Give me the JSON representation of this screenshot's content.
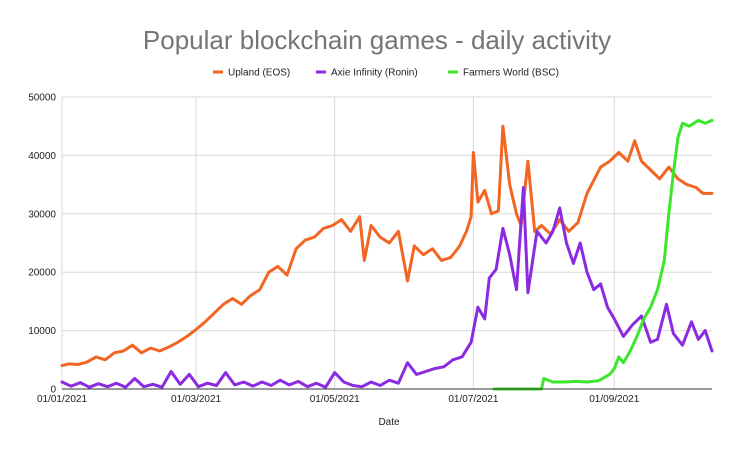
{
  "chart_data": {
    "type": "line",
    "title": "Popular blockchain games - daily activity",
    "xlabel": "Date",
    "ylabel": "",
    "ylim": [
      0,
      50000
    ],
    "yticks": [
      0,
      10000,
      20000,
      30000,
      40000,
      50000
    ],
    "xlim": [
      "2021-01-01",
      "2021-10-14"
    ],
    "xticks": [
      {
        "date": "2021-01-01",
        "label": "01/01/2021"
      },
      {
        "date": "2021-03-01",
        "label": "01/03/2021"
      },
      {
        "date": "2021-05-01",
        "label": "01/05/2021"
      },
      {
        "date": "2021-07-01",
        "label": "01/07/2021"
      },
      {
        "date": "2021-09-01",
        "label": "01/09/2021"
      }
    ],
    "grid": true,
    "legend_position": "top",
    "series": [
      {
        "name": "Upland (EOS)",
        "color": "#f26522",
        "points": [
          [
            "2021-01-01",
            4000
          ],
          [
            "2021-01-04",
            4300
          ],
          [
            "2021-01-08",
            4200
          ],
          [
            "2021-01-12",
            4600
          ],
          [
            "2021-01-16",
            5500
          ],
          [
            "2021-01-20",
            5000
          ],
          [
            "2021-01-24",
            6200
          ],
          [
            "2021-01-28",
            6500
          ],
          [
            "2021-02-01",
            7500
          ],
          [
            "2021-02-05",
            6200
          ],
          [
            "2021-02-09",
            7000
          ],
          [
            "2021-02-13",
            6500
          ],
          [
            "2021-02-17",
            7200
          ],
          [
            "2021-02-21",
            8000
          ],
          [
            "2021-02-25",
            9000
          ],
          [
            "2021-03-01",
            10200
          ],
          [
            "2021-03-05",
            11500
          ],
          [
            "2021-03-09",
            13000
          ],
          [
            "2021-03-13",
            14500
          ],
          [
            "2021-03-17",
            15500
          ],
          [
            "2021-03-21",
            14500
          ],
          [
            "2021-03-25",
            16000
          ],
          [
            "2021-03-29",
            17000
          ],
          [
            "2021-04-02",
            20000
          ],
          [
            "2021-04-06",
            21000
          ],
          [
            "2021-04-10",
            19500
          ],
          [
            "2021-04-14",
            24000
          ],
          [
            "2021-04-18",
            25500
          ],
          [
            "2021-04-22",
            26000
          ],
          [
            "2021-04-26",
            27500
          ],
          [
            "2021-04-30",
            28000
          ],
          [
            "2021-05-04",
            29000
          ],
          [
            "2021-05-08",
            27000
          ],
          [
            "2021-05-12",
            29500
          ],
          [
            "2021-05-14",
            22000
          ],
          [
            "2021-05-17",
            28000
          ],
          [
            "2021-05-21",
            26000
          ],
          [
            "2021-05-25",
            25000
          ],
          [
            "2021-05-29",
            27000
          ],
          [
            "2021-06-02",
            18500
          ],
          [
            "2021-06-05",
            24500
          ],
          [
            "2021-06-09",
            23000
          ],
          [
            "2021-06-13",
            24000
          ],
          [
            "2021-06-17",
            22000
          ],
          [
            "2021-06-21",
            22500
          ],
          [
            "2021-06-25",
            24500
          ],
          [
            "2021-06-28",
            27000
          ],
          [
            "2021-06-30",
            29500
          ],
          [
            "2021-07-01",
            40500
          ],
          [
            "2021-07-03",
            32000
          ],
          [
            "2021-07-06",
            34000
          ],
          [
            "2021-07-09",
            30000
          ],
          [
            "2021-07-12",
            30500
          ],
          [
            "2021-07-14",
            45000
          ],
          [
            "2021-07-17",
            35000
          ],
          [
            "2021-07-20",
            30000
          ],
          [
            "2021-07-22",
            28000
          ],
          [
            "2021-07-25",
            39000
          ],
          [
            "2021-07-28",
            27000
          ],
          [
            "2021-07-31",
            28000
          ],
          [
            "2021-08-04",
            26500
          ],
          [
            "2021-08-08",
            29000
          ],
          [
            "2021-08-12",
            27000
          ],
          [
            "2021-08-16",
            28500
          ],
          [
            "2021-08-20",
            33500
          ],
          [
            "2021-08-24",
            36500
          ],
          [
            "2021-08-26",
            38000
          ],
          [
            "2021-08-30",
            39000
          ],
          [
            "2021-09-03",
            40500
          ],
          [
            "2021-09-07",
            39000
          ],
          [
            "2021-09-10",
            42500
          ],
          [
            "2021-09-13",
            39000
          ],
          [
            "2021-09-17",
            37500
          ],
          [
            "2021-09-21",
            36000
          ],
          [
            "2021-09-25",
            38000
          ],
          [
            "2021-09-29",
            36000
          ],
          [
            "2021-10-03",
            35000
          ],
          [
            "2021-10-07",
            34500
          ],
          [
            "2021-10-10",
            33500
          ],
          [
            "2021-10-14",
            33500
          ]
        ]
      },
      {
        "name": "Axie Infinity (Ronin)",
        "color": "#8a2be2",
        "points": [
          [
            "2021-01-01",
            1200
          ],
          [
            "2021-01-05",
            500
          ],
          [
            "2021-01-09",
            1100
          ],
          [
            "2021-01-13",
            300
          ],
          [
            "2021-01-17",
            900
          ],
          [
            "2021-01-21",
            400
          ],
          [
            "2021-01-25",
            1000
          ],
          [
            "2021-01-29",
            300
          ],
          [
            "2021-02-02",
            1800
          ],
          [
            "2021-02-06",
            400
          ],
          [
            "2021-02-10",
            800
          ],
          [
            "2021-02-14",
            300
          ],
          [
            "2021-02-18",
            3000
          ],
          [
            "2021-02-22",
            800
          ],
          [
            "2021-02-26",
            2500
          ],
          [
            "2021-03-02",
            400
          ],
          [
            "2021-03-06",
            1000
          ],
          [
            "2021-03-10",
            600
          ],
          [
            "2021-03-14",
            2800
          ],
          [
            "2021-03-18",
            700
          ],
          [
            "2021-03-22",
            1200
          ],
          [
            "2021-03-26",
            500
          ],
          [
            "2021-03-30",
            1200
          ],
          [
            "2021-04-03",
            600
          ],
          [
            "2021-04-07",
            1500
          ],
          [
            "2021-04-11",
            700
          ],
          [
            "2021-04-15",
            1300
          ],
          [
            "2021-04-19",
            400
          ],
          [
            "2021-04-23",
            1000
          ],
          [
            "2021-04-27",
            300
          ],
          [
            "2021-05-01",
            2800
          ],
          [
            "2021-05-05",
            1200
          ],
          [
            "2021-05-09",
            600
          ],
          [
            "2021-05-13",
            400
          ],
          [
            "2021-05-17",
            1200
          ],
          [
            "2021-05-21",
            600
          ],
          [
            "2021-05-25",
            1500
          ],
          [
            "2021-05-29",
            1000
          ],
          [
            "2021-06-02",
            4500
          ],
          [
            "2021-06-06",
            2500
          ],
          [
            "2021-06-10",
            3000
          ],
          [
            "2021-06-14",
            3500
          ],
          [
            "2021-06-18",
            3800
          ],
          [
            "2021-06-22",
            5000
          ],
          [
            "2021-06-26",
            5500
          ],
          [
            "2021-06-30",
            8000
          ],
          [
            "2021-07-03",
            14000
          ],
          [
            "2021-07-06",
            12000
          ],
          [
            "2021-07-08",
            19000
          ],
          [
            "2021-07-11",
            20500
          ],
          [
            "2021-07-14",
            27500
          ],
          [
            "2021-07-17",
            23000
          ],
          [
            "2021-07-20",
            17000
          ],
          [
            "2021-07-23",
            34500
          ],
          [
            "2021-07-25",
            16500
          ],
          [
            "2021-07-29",
            27000
          ],
          [
            "2021-08-02",
            25000
          ],
          [
            "2021-08-05",
            27000
          ],
          [
            "2021-08-08",
            31000
          ],
          [
            "2021-08-11",
            25000
          ],
          [
            "2021-08-14",
            21500
          ],
          [
            "2021-08-17",
            25000
          ],
          [
            "2021-08-20",
            20000
          ],
          [
            "2021-08-23",
            17000
          ],
          [
            "2021-08-26",
            18000
          ],
          [
            "2021-08-29",
            14000
          ],
          [
            "2021-09-01",
            12000
          ],
          [
            "2021-09-05",
            9000
          ],
          [
            "2021-09-09",
            11000
          ],
          [
            "2021-09-13",
            12500
          ],
          [
            "2021-09-17",
            8000
          ],
          [
            "2021-09-20",
            8500
          ],
          [
            "2021-09-24",
            14500
          ],
          [
            "2021-09-27",
            9500
          ],
          [
            "2021-10-01",
            7500
          ],
          [
            "2021-10-05",
            11500
          ],
          [
            "2021-10-08",
            8500
          ],
          [
            "2021-10-11",
            10000
          ],
          [
            "2021-10-14",
            6500
          ]
        ]
      },
      {
        "name": "Farmers World (BSC)",
        "color": "#3ce62a",
        "points": [
          [
            "2021-07-10",
            0
          ],
          [
            "2021-07-31",
            0
          ],
          [
            "2021-08-01",
            1800
          ],
          [
            "2021-08-05",
            1200
          ],
          [
            "2021-08-10",
            1200
          ],
          [
            "2021-08-15",
            1300
          ],
          [
            "2021-08-20",
            1200
          ],
          [
            "2021-08-25",
            1400
          ],
          [
            "2021-08-30",
            2500
          ],
          [
            "2021-09-01",
            3500
          ],
          [
            "2021-09-03",
            5500
          ],
          [
            "2021-09-05",
            4500
          ],
          [
            "2021-09-08",
            6500
          ],
          [
            "2021-09-11",
            9000
          ],
          [
            "2021-09-14",
            12000
          ],
          [
            "2021-09-17",
            14000
          ],
          [
            "2021-09-20",
            17000
          ],
          [
            "2021-09-23",
            22000
          ],
          [
            "2021-09-25",
            30000
          ],
          [
            "2021-09-27",
            37000
          ],
          [
            "2021-09-29",
            43000
          ],
          [
            "2021-10-01",
            45500
          ],
          [
            "2021-10-04",
            45000
          ],
          [
            "2021-10-08",
            46000
          ],
          [
            "2021-10-11",
            45500
          ],
          [
            "2021-10-14",
            46000
          ]
        ]
      }
    ]
  }
}
